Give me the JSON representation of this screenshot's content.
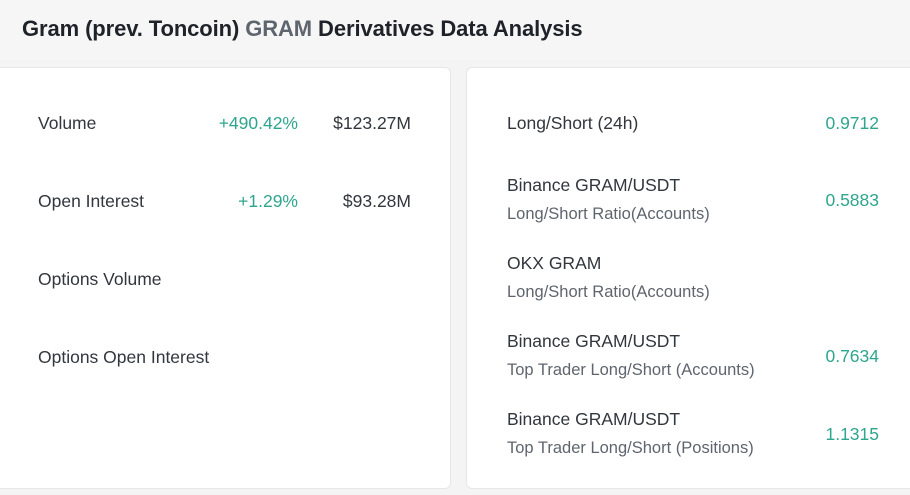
{
  "header": {
    "title_prefix": "Gram (prev. Toncoin) ",
    "title_token": "GRAM",
    "title_suffix": " Derivatives Data Analysis"
  },
  "left_panel": {
    "rows": [
      {
        "label": "Volume",
        "change": "+490.42%",
        "amount": "$123.27M"
      },
      {
        "label": "Open Interest",
        "change": "+1.29%",
        "amount": "$93.28M"
      },
      {
        "label": "Options Volume",
        "change": "",
        "amount": ""
      },
      {
        "label": "Options Open Interest",
        "change": "",
        "amount": ""
      }
    ]
  },
  "right_panel": {
    "rows": [
      {
        "main": "Long/Short (24h)",
        "sub": "",
        "value": "0.9712"
      },
      {
        "main": "Binance GRAM/USDT",
        "sub": "Long/Short Ratio(Accounts)",
        "value": "0.5883"
      },
      {
        "main": "OKX GRAM",
        "sub": "Long/Short Ratio(Accounts)",
        "value": ""
      },
      {
        "main": "Binance GRAM/USDT",
        "sub": "Top Trader Long/Short (Accounts)",
        "value": "0.7634"
      },
      {
        "main": "Binance GRAM/USDT",
        "sub": "Top Trader Long/Short (Positions)",
        "value": "1.1315"
      }
    ]
  },
  "colors": {
    "positive": "#2ea58e",
    "text": "#32363d",
    "muted": "#5f656e",
    "background": "#f4f4f5",
    "card": "#ffffff"
  }
}
